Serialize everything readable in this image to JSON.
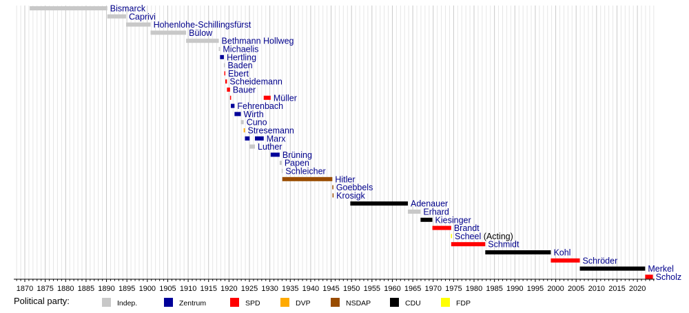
{
  "chart_data": {
    "type": "timeline",
    "title": "",
    "xlabel": "",
    "ylabel": "",
    "xlim": [
      1867.3,
      2024.2
    ],
    "grid": true,
    "x_ticks": [
      1870,
      1875,
      1880,
      1885,
      1890,
      1895,
      1900,
      1905,
      1910,
      1915,
      1920,
      1925,
      1930,
      1935,
      1940,
      1945,
      1950,
      1955,
      1960,
      1965,
      1970,
      1975,
      1980,
      1985,
      1990,
      1995,
      2000,
      2005,
      2010,
      2015,
      2020
    ],
    "parties": [
      {
        "key": "indep",
        "name": "Indep.",
        "color": "#c8c8c8"
      },
      {
        "key": "zentrum",
        "name": "Zentrum",
        "color": "#000099"
      },
      {
        "key": "spd",
        "name": "SPD",
        "color": "#ff0000"
      },
      {
        "key": "dvp",
        "name": "DVP",
        "color": "#ffaa00"
      },
      {
        "key": "nsdap",
        "name": "NSDAP",
        "color": "#994c00"
      },
      {
        "key": "cdu",
        "name": "CDU",
        "color": "#000000"
      },
      {
        "key": "fdp",
        "name": "FDP",
        "color": "#ffff00"
      }
    ],
    "legend_title": "Political party:",
    "legend_position": "bottom",
    "rows": [
      {
        "name": "Bismarck",
        "terms": [
          {
            "start": 1871.2,
            "end": 1890.2,
            "party": "indep"
          }
        ]
      },
      {
        "name": "Caprivi",
        "terms": [
          {
            "start": 1890.2,
            "end": 1894.8,
            "party": "indep"
          }
        ]
      },
      {
        "name": "Hohenlohe-Schillingsfürst",
        "terms": [
          {
            "start": 1894.8,
            "end": 1900.8,
            "party": "indep"
          }
        ]
      },
      {
        "name": "Bülow",
        "terms": [
          {
            "start": 1900.8,
            "end": 1909.5,
            "party": "indep"
          }
        ]
      },
      {
        "name": "Bethmann Hollweg",
        "terms": [
          {
            "start": 1909.5,
            "end": 1917.5,
            "party": "indep"
          }
        ]
      },
      {
        "name": "Michaelis",
        "terms": [
          {
            "start": 1917.5,
            "end": 1917.8,
            "party": "indep"
          }
        ]
      },
      {
        "name": "Hertling",
        "terms": [
          {
            "start": 1917.8,
            "end": 1918.75,
            "party": "zentrum"
          }
        ]
      },
      {
        "name": "Baden",
        "terms": [
          {
            "start": 1918.75,
            "end": 1918.85,
            "party": "indep"
          }
        ]
      },
      {
        "name": "Ebert",
        "terms": [
          {
            "start": 1918.85,
            "end": 1919.1,
            "party": "spd"
          }
        ]
      },
      {
        "name": "Scheidemann",
        "terms": [
          {
            "start": 1919.1,
            "end": 1919.5,
            "party": "spd"
          }
        ]
      },
      {
        "name": "Bauer",
        "terms": [
          {
            "start": 1919.5,
            "end": 1920.25,
            "party": "spd"
          }
        ]
      },
      {
        "name": "Müller",
        "terms": [
          {
            "start": 1920.25,
            "end": 1920.45,
            "party": "spd"
          },
          {
            "start": 1928.5,
            "end": 1930.2,
            "party": "spd"
          }
        ]
      },
      {
        "name": "Fehrenbach",
        "terms": [
          {
            "start": 1920.45,
            "end": 1921.35,
            "party": "zentrum"
          }
        ]
      },
      {
        "name": "Wirth",
        "terms": [
          {
            "start": 1921.35,
            "end": 1922.9,
            "party": "zentrum"
          }
        ]
      },
      {
        "name": "Cuno",
        "terms": [
          {
            "start": 1922.9,
            "end": 1923.6,
            "party": "indep"
          }
        ]
      },
      {
        "name": "Stresemann",
        "terms": [
          {
            "start": 1923.6,
            "end": 1923.9,
            "party": "dvp"
          }
        ]
      },
      {
        "name": "Marx",
        "terms": [
          {
            "start": 1923.9,
            "end": 1925.05,
            "party": "zentrum"
          },
          {
            "start": 1926.35,
            "end": 1928.5,
            "party": "zentrum"
          }
        ]
      },
      {
        "name": "Luther",
        "terms": [
          {
            "start": 1925.05,
            "end": 1926.35,
            "party": "indep"
          }
        ]
      },
      {
        "name": "Brüning",
        "terms": [
          {
            "start": 1930.2,
            "end": 1932.4,
            "party": "zentrum"
          }
        ]
      },
      {
        "name": "Papen",
        "terms": [
          {
            "start": 1932.4,
            "end": 1932.9,
            "party": "indep"
          }
        ]
      },
      {
        "name": "Schleicher",
        "terms": [
          {
            "start": 1932.9,
            "end": 1933.05,
            "party": "indep"
          }
        ]
      },
      {
        "name": "Hitler",
        "terms": [
          {
            "start": 1933.05,
            "end": 1945.3,
            "party": "nsdap"
          }
        ]
      },
      {
        "name": "Goebbels",
        "terms": [
          {
            "start": 1945.3,
            "end": 1945.35,
            "party": "nsdap"
          }
        ]
      },
      {
        "name": "Krosigk",
        "terms": [
          {
            "start": 1945.35,
            "end": 1945.4,
            "party": "nsdap"
          }
        ]
      },
      {
        "name": "Adenauer",
        "terms": [
          {
            "start": 1949.7,
            "end": 1963.8,
            "party": "cdu"
          }
        ]
      },
      {
        "name": "Erhard",
        "terms": [
          {
            "start": 1963.8,
            "end": 1966.9,
            "party": "indep"
          }
        ]
      },
      {
        "name": "Kiesinger",
        "terms": [
          {
            "start": 1966.9,
            "end": 1969.8,
            "party": "cdu"
          }
        ]
      },
      {
        "name": "Brandt",
        "terms": [
          {
            "start": 1969.8,
            "end": 1974.4,
            "party": "spd"
          }
        ]
      },
      {
        "name": "Scheel",
        "note": "(Acting)",
        "terms": [
          {
            "start": 1974.35,
            "end": 1974.45,
            "party": "fdp"
          }
        ]
      },
      {
        "name": "Schmidt",
        "terms": [
          {
            "start": 1974.4,
            "end": 1982.75,
            "party": "spd"
          }
        ]
      },
      {
        "name": "Kohl",
        "terms": [
          {
            "start": 1982.75,
            "end": 1998.8,
            "party": "cdu"
          }
        ]
      },
      {
        "name": "Schröder",
        "terms": [
          {
            "start": 1998.8,
            "end": 2005.9,
            "party": "spd"
          }
        ]
      },
      {
        "name": "Merkel",
        "terms": [
          {
            "start": 2005.9,
            "end": 2021.9,
            "party": "cdu"
          }
        ]
      },
      {
        "name": "Scholz",
        "terms": [
          {
            "start": 2021.9,
            "end": 2023.8,
            "party": "spd"
          }
        ]
      }
    ]
  }
}
